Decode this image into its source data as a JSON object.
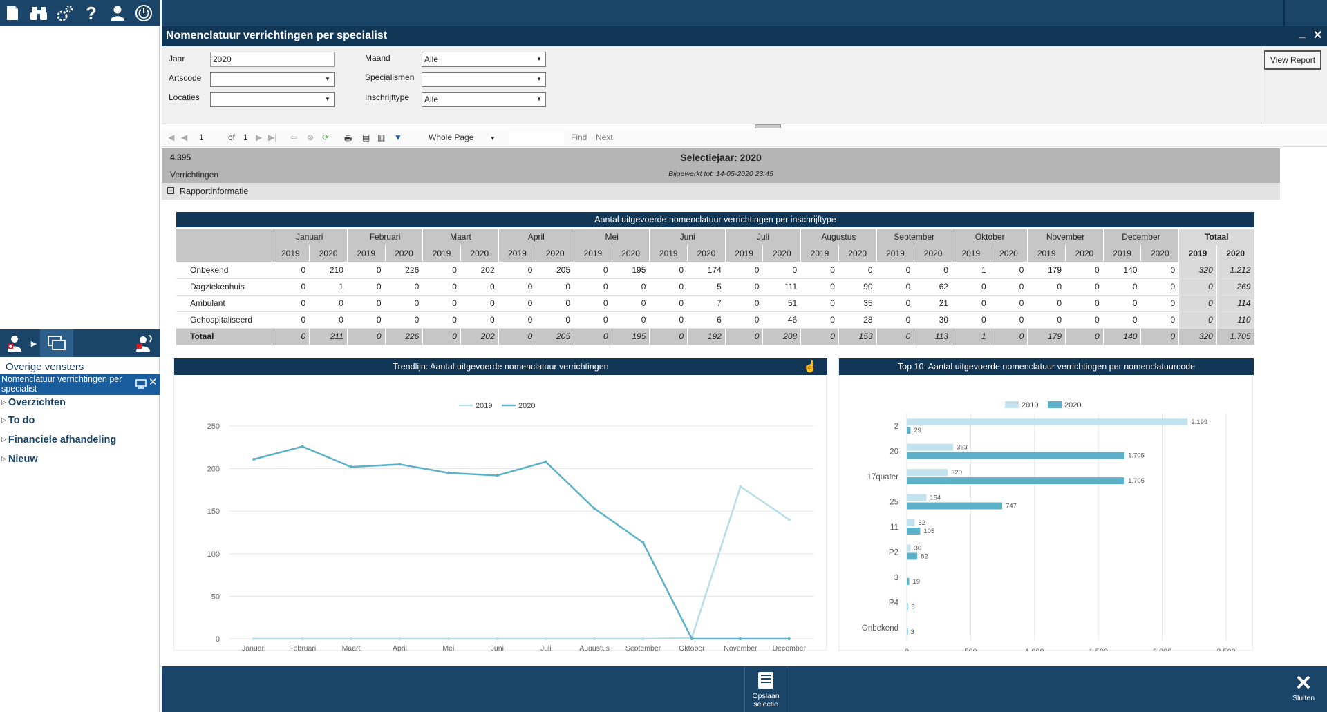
{
  "toolbar_icons": [
    "document-icon",
    "binoculars-icon",
    "gears-icon",
    "help-icon",
    "user-icon",
    "power-icon"
  ],
  "left_panel": {
    "other_windows_label": "Overige vensters",
    "current_window": "Nomenclatuur verrichtingen per specialist",
    "nav": [
      "Overzichten",
      "To do",
      "Financiele afhandeling",
      "Nieuw"
    ]
  },
  "window": {
    "title": "Nomenclatuur verrichtingen per specialist",
    "minimize": "_",
    "close": "✕"
  },
  "params": {
    "jaar_label": "Jaar",
    "jaar_value": "2020",
    "artscode_label": "Artscode",
    "artscode_value": "",
    "locaties_label": "Locaties",
    "locaties_value": "",
    "maand_label": "Maand",
    "maand_value": "Alle",
    "specialismen_label": "Specialismen",
    "specialismen_value": "",
    "inschrijftype_label": "Inschrijftype",
    "inschrijftype_value": "Alle",
    "view_report": "View Report"
  },
  "report_toolbar": {
    "page": "1",
    "of_label": "of",
    "total_pages": "1",
    "zoom": "Whole Page",
    "find": "Find",
    "next": "Next"
  },
  "report_header": {
    "count": "4.395",
    "count_label": "Verrichtingen",
    "selection": "Selectiejaar: 2020",
    "updated": "Bijgewerkt tot: 14-05-2020 23:45",
    "info": "Rapportinformatie"
  },
  "table": {
    "title": "Aantal uitgevoerde nomenclatuur verrichtingen per inschrijftype",
    "months": [
      "Januari",
      "Februari",
      "Maart",
      "April",
      "Mei",
      "Juni",
      "Juli",
      "Augustus",
      "September",
      "Oktober",
      "November",
      "December"
    ],
    "total_label": "Totaal",
    "years": [
      "2019",
      "2020"
    ],
    "rows": [
      {
        "label": "Onbekend",
        "values": [
          "0",
          "210",
          "0",
          "226",
          "0",
          "202",
          "0",
          "205",
          "0",
          "195",
          "0",
          "174",
          "0",
          "0",
          "0",
          "0",
          "0",
          "0",
          "1",
          "0",
          "179",
          "0",
          "140",
          "0"
        ],
        "totals": [
          "320",
          "1.212"
        ]
      },
      {
        "label": "Dagziekenhuis",
        "values": [
          "0",
          "1",
          "0",
          "0",
          "0",
          "0",
          "0",
          "0",
          "0",
          "0",
          "0",
          "5",
          "0",
          "111",
          "0",
          "90",
          "0",
          "62",
          "0",
          "0",
          "0",
          "0",
          "0",
          "0"
        ],
        "totals": [
          "0",
          "269"
        ]
      },
      {
        "label": "Ambulant",
        "values": [
          "0",
          "0",
          "0",
          "0",
          "0",
          "0",
          "0",
          "0",
          "0",
          "0",
          "0",
          "7",
          "0",
          "51",
          "0",
          "35",
          "0",
          "21",
          "0",
          "0",
          "0",
          "0",
          "0",
          "0"
        ],
        "totals": [
          "0",
          "114"
        ]
      },
      {
        "label": "Gehospitaliseerd",
        "values": [
          "0",
          "0",
          "0",
          "0",
          "0",
          "0",
          "0",
          "0",
          "0",
          "0",
          "0",
          "6",
          "0",
          "46",
          "0",
          "28",
          "0",
          "30",
          "0",
          "0",
          "0",
          "0",
          "0",
          "0"
        ],
        "totals": [
          "0",
          "110"
        ]
      }
    ],
    "total_row": {
      "label": "Totaal",
      "values": [
        "0",
        "211",
        "0",
        "226",
        "0",
        "202",
        "0",
        "205",
        "0",
        "195",
        "0",
        "192",
        "0",
        "208",
        "0",
        "153",
        "0",
        "113",
        "1",
        "0",
        "179",
        "0",
        "140",
        "0"
      ],
      "totals": [
        "320",
        "1.705"
      ]
    }
  },
  "chart_data": [
    {
      "type": "line",
      "title": "Trendlijn: Aantal uitgevoerde nomenclatuur verrichtingen",
      "categories": [
        "Januari",
        "Februari",
        "Maart",
        "April",
        "Mei",
        "Juni",
        "Juli",
        "Augustus",
        "September",
        "Oktober",
        "November",
        "December"
      ],
      "series": [
        {
          "name": "2019",
          "color": "#b8dde8",
          "values": [
            0,
            0,
            0,
            0,
            0,
            0,
            0,
            0,
            0,
            1,
            179,
            140
          ]
        },
        {
          "name": "2020",
          "color": "#5cb1c8",
          "values": [
            211,
            226,
            202,
            205,
            195,
            192,
            208,
            153,
            113,
            0,
            0,
            0
          ]
        }
      ],
      "yticks": [
        "0",
        "50",
        "100",
        "150",
        "200",
        "250"
      ],
      "ylim": [
        0,
        250
      ],
      "grid": true,
      "legend": "top"
    },
    {
      "type": "bar",
      "orientation": "horizontal",
      "title": "Top 10: Aantal uitgevoerde nomenclatuur verrichtingen per nomenclatuurcode",
      "categories": [
        "2",
        "20",
        "17quater",
        "25",
        "11",
        "P2",
        "3",
        "P4",
        "Onbekend"
      ],
      "series": [
        {
          "name": "2019",
          "color": "#c2e3ed",
          "values": [
            2199,
            363,
            320,
            154,
            62,
            30,
            0,
            0,
            0
          ],
          "labels": [
            "2.199",
            "363",
            "320",
            "154",
            "62",
            "30",
            "",
            "",
            ""
          ]
        },
        {
          "name": "2020",
          "color": "#5cb1c8",
          "values": [
            29,
            1705,
            1705,
            747,
            105,
            82,
            19,
            8,
            3
          ],
          "labels": [
            "29",
            "1.705",
            "1.705",
            "747",
            "105",
            "82",
            "19",
            "8",
            "3"
          ]
        }
      ],
      "xticks": [
        "0",
        "500",
        "1.000",
        "1.500",
        "2.000",
        "2.500"
      ],
      "xlim": [
        0,
        2500
      ],
      "grid": true,
      "legend": "top"
    }
  ],
  "bottom": {
    "save_label": "Opslaan selectie",
    "close_label": "Sluiten"
  }
}
